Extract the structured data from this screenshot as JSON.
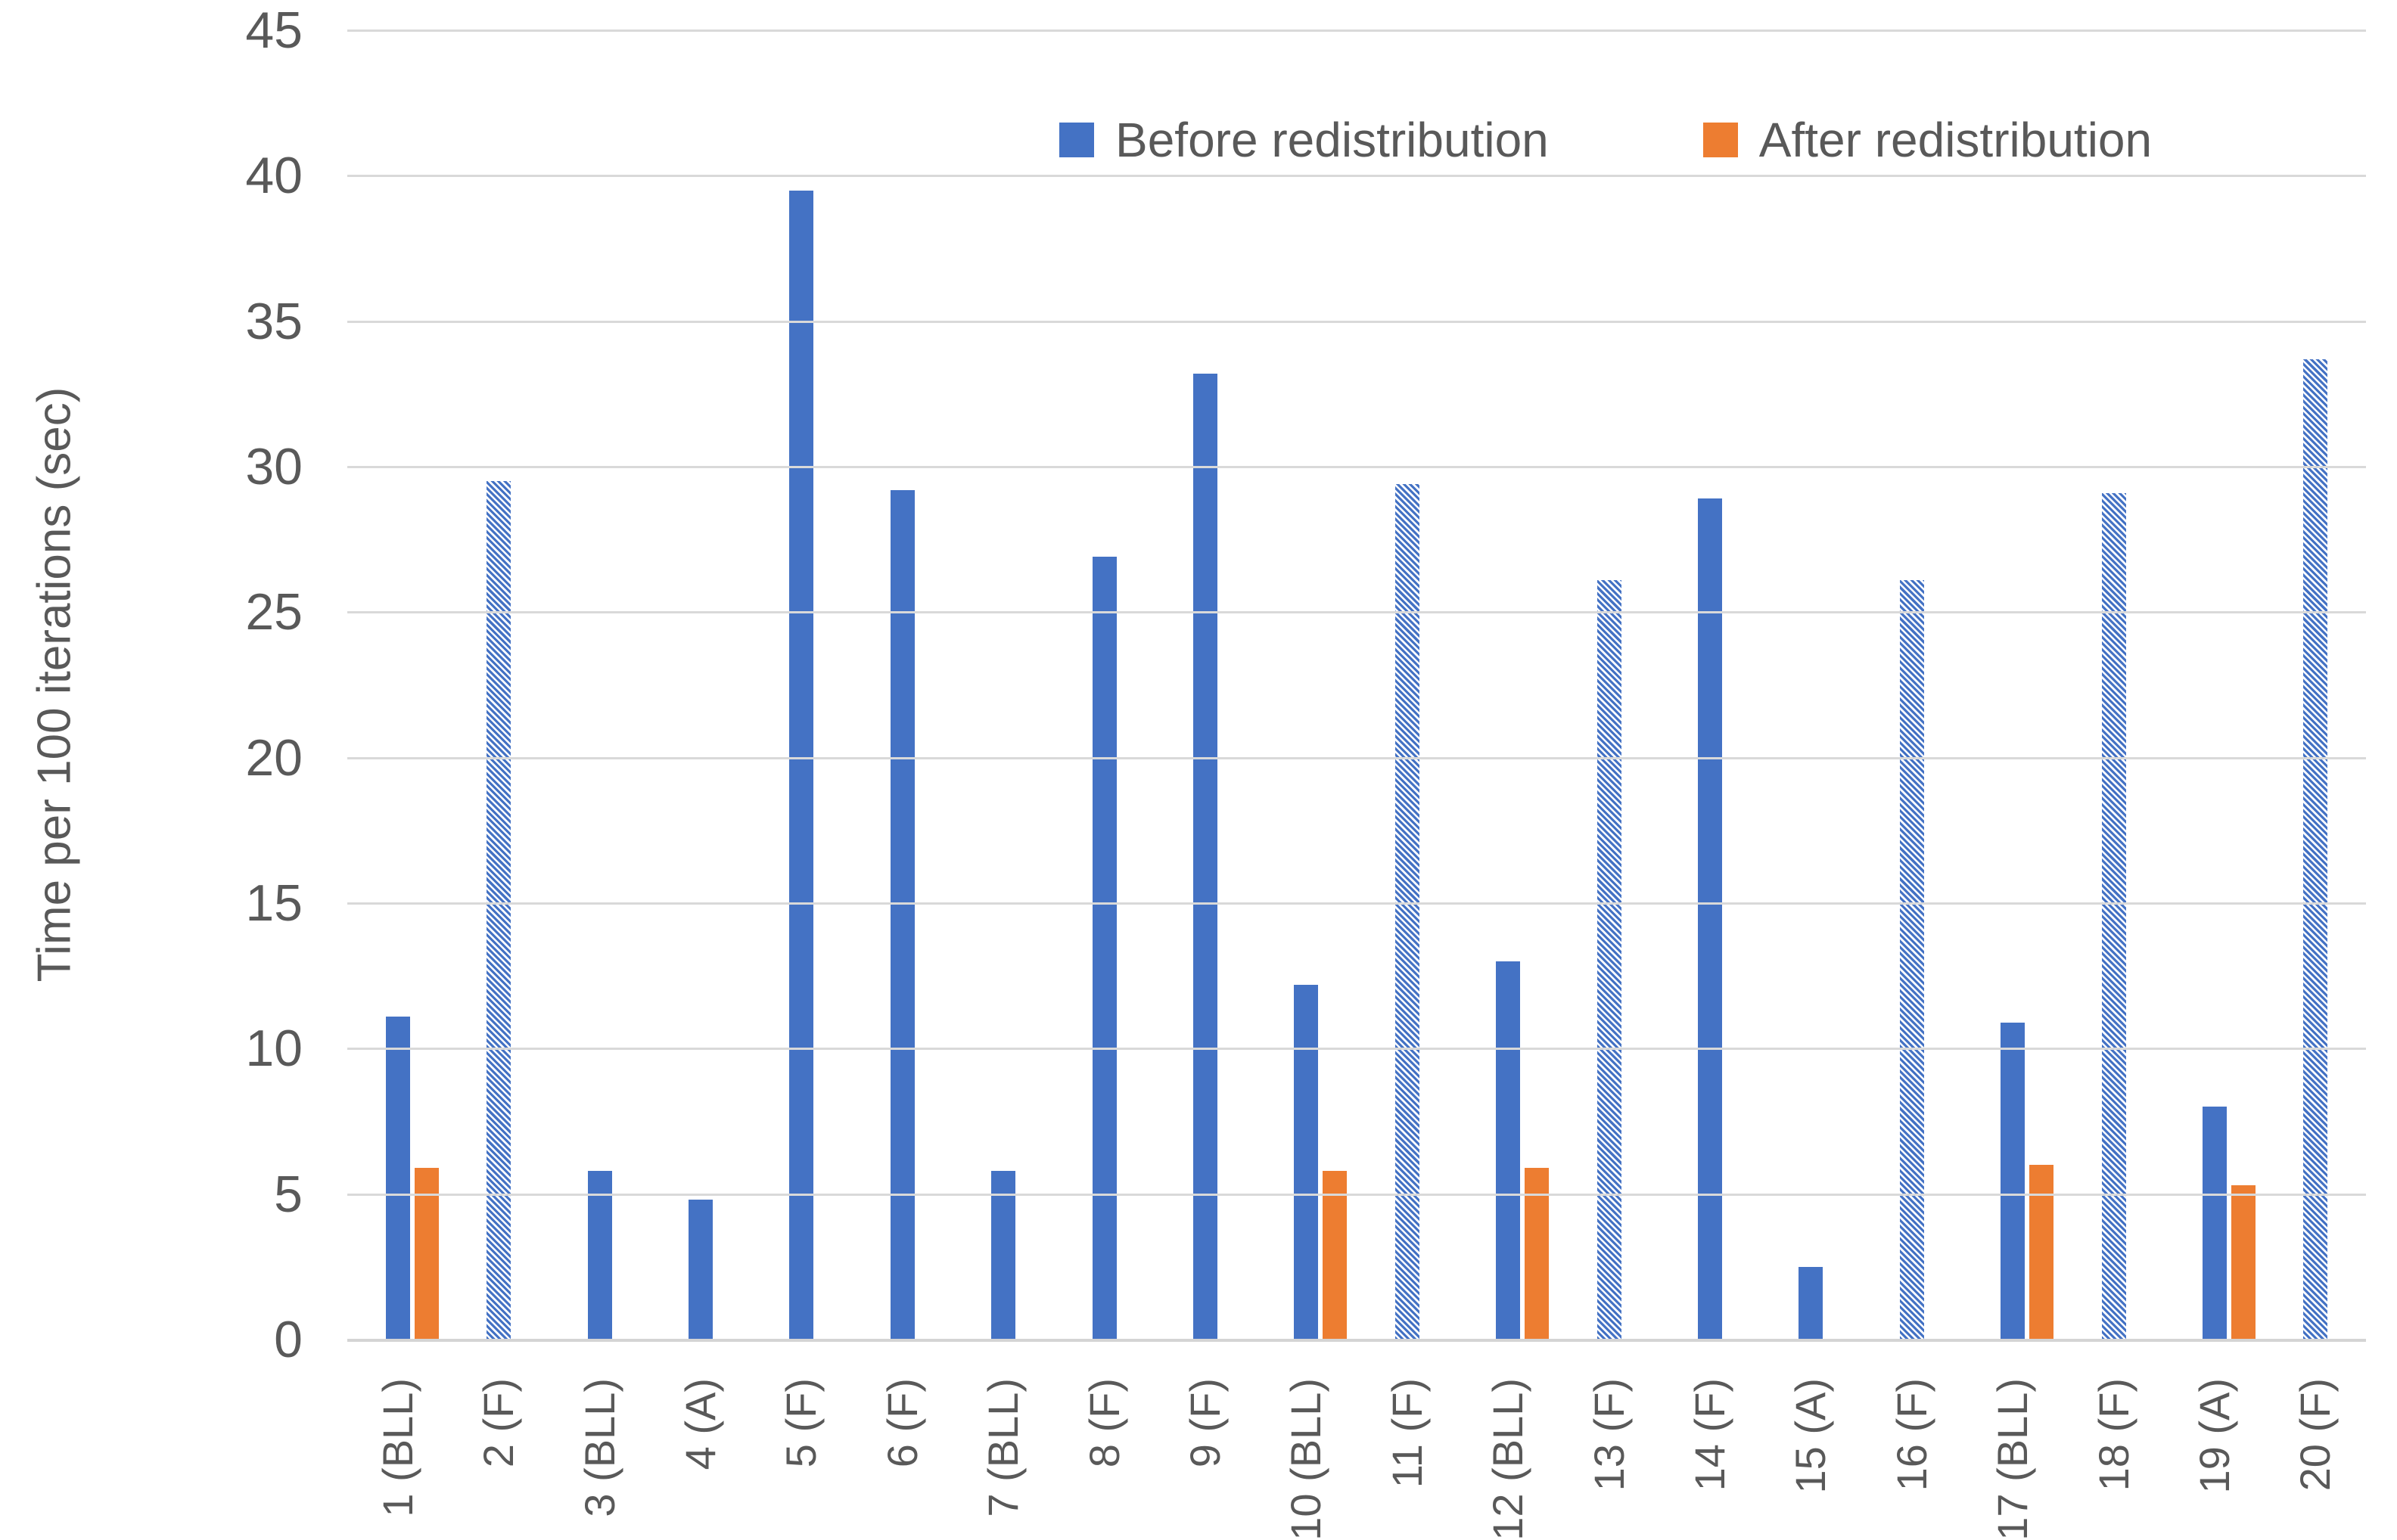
{
  "chart_data": {
    "type": "bar",
    "title": "",
    "xlabel": "",
    "ylabel": "Time per 100 iterations (sec)",
    "ylim": [
      0,
      45
    ],
    "yticks": [
      0,
      5,
      10,
      15,
      20,
      25,
      30,
      35,
      40,
      45
    ],
    "grid": true,
    "legend_position": "top-center-inside",
    "categories": [
      "1 (BLL)",
      "2 (F)",
      "3 (BLL)",
      "4 (A)",
      "5 (F)",
      "6 (F)",
      "7 (BLL)",
      "8 (F)",
      "9 (F)",
      "10 (BLL)",
      "11 (F)",
      "12 (BLL)",
      "13 (F)",
      "14 (F)",
      "15 (A)",
      "16 (F)",
      "17 (BLL)",
      "18 (F)",
      "19 (A)",
      "20 (F)"
    ],
    "series": [
      {
        "name": "Before redistribution",
        "color": "#4472C4",
        "values": [
          11.1,
          29.5,
          5.8,
          4.8,
          39.5,
          29.2,
          5.8,
          26.9,
          33.2,
          12.2,
          29.4,
          13.0,
          26.1,
          28.9,
          2.5,
          26.1,
          10.9,
          29.1,
          8.0,
          33.7
        ],
        "hatched": [
          false,
          true,
          false,
          false,
          false,
          false,
          false,
          false,
          false,
          false,
          true,
          false,
          true,
          false,
          false,
          true,
          false,
          true,
          false,
          true
        ],
        "hatch_style": "diagonal-stripes-backslash"
      },
      {
        "name": "After redistribution",
        "color": "#ED7D31",
        "values": [
          5.9,
          null,
          null,
          null,
          null,
          null,
          null,
          null,
          null,
          5.8,
          null,
          5.9,
          null,
          null,
          null,
          null,
          6.0,
          null,
          5.3,
          null
        ]
      }
    ],
    "colors": {
      "grid": "#D9D9D9",
      "axis": "#D4D4D4",
      "text": "#595959",
      "background": "#FFFFFF"
    }
  }
}
